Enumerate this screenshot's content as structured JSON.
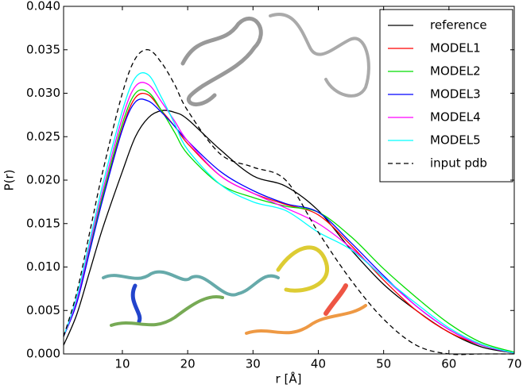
{
  "chart_data": {
    "type": "line",
    "x_label": "r [Å]",
    "y_label": "P(r)",
    "x": [
      1,
      3,
      5,
      7,
      10,
      12,
      14,
      16,
      18,
      20,
      25,
      30,
      35,
      40,
      45,
      50,
      55,
      60,
      65,
      70
    ],
    "series": [
      {
        "name": "reference",
        "color": "#000000",
        "dash": false,
        "values": [
          0.001,
          0.0045,
          0.0095,
          0.0145,
          0.021,
          0.025,
          0.0272,
          0.028,
          0.0278,
          0.027,
          0.0235,
          0.0205,
          0.0193,
          0.0165,
          0.012,
          0.008,
          0.005,
          0.0025,
          0.0008,
          0.0001
        ]
      },
      {
        "name": "MODEL1",
        "color": "#ff0000",
        "dash": false,
        "values": [
          0.002,
          0.006,
          0.012,
          0.018,
          0.026,
          0.0295,
          0.0298,
          0.028,
          0.0262,
          0.0242,
          0.0205,
          0.0185,
          0.0172,
          0.016,
          0.0125,
          0.0085,
          0.005,
          0.0025,
          0.001,
          0.0001
        ]
      },
      {
        "name": "MODEL2",
        "color": "#00dd00",
        "dash": false,
        "values": [
          0.002,
          0.006,
          0.0122,
          0.0183,
          0.0265,
          0.03,
          0.0301,
          0.028,
          0.0255,
          0.023,
          0.0195,
          0.018,
          0.017,
          0.0163,
          0.0135,
          0.0098,
          0.0065,
          0.0035,
          0.0013,
          0.0002
        ]
      },
      {
        "name": "MODEL3",
        "color": "#0000ff",
        "dash": false,
        "values": [
          0.002,
          0.0058,
          0.0118,
          0.0178,
          0.0258,
          0.029,
          0.0291,
          0.0278,
          0.0262,
          0.0245,
          0.021,
          0.0188,
          0.0173,
          0.0163,
          0.0128,
          0.009,
          0.0055,
          0.0028,
          0.001,
          0.0001
        ]
      },
      {
        "name": "MODEL4",
        "color": "#ff00ff",
        "dash": false,
        "values": [
          0.002,
          0.0062,
          0.0125,
          0.0188,
          0.0272,
          0.0308,
          0.031,
          0.029,
          0.0268,
          0.0245,
          0.0205,
          0.0185,
          0.0168,
          0.015,
          0.0122,
          0.0088,
          0.0055,
          0.0028,
          0.001,
          0.0001
        ]
      },
      {
        "name": "MODEL5",
        "color": "#00ffff",
        "dash": false,
        "values": [
          0.002,
          0.0065,
          0.013,
          0.0195,
          0.028,
          0.0318,
          0.0321,
          0.0295,
          0.0265,
          0.0235,
          0.0195,
          0.0175,
          0.0165,
          0.014,
          0.012,
          0.0088,
          0.0058,
          0.003,
          0.0011,
          0.0001
        ]
      },
      {
        "name": "input pdb",
        "color": "#000000",
        "dash": true,
        "values": [
          0.002,
          0.007,
          0.014,
          0.021,
          0.03,
          0.034,
          0.035,
          0.0335,
          0.031,
          0.028,
          0.023,
          0.0215,
          0.02,
          0.014,
          0.0085,
          0.004,
          0.001,
          0.0,
          0.0,
          0.0
        ]
      }
    ],
    "xlim": [
      1,
      70
    ],
    "xticks": [
      10,
      20,
      30,
      40,
      50,
      60,
      70
    ],
    "ylim": [
      0,
      0.04
    ],
    "yticks": [
      {
        "value": 0,
        "label": "0.000"
      },
      {
        "value": 0.005,
        "label": "0.005"
      },
      {
        "value": 0.01,
        "label": "0.010"
      },
      {
        "value": 0.015,
        "label": "0.015"
      },
      {
        "value": 0.02,
        "label": "0.020"
      },
      {
        "value": 0.025,
        "label": "0.025"
      },
      {
        "value": 0.03,
        "label": "0.030"
      },
      {
        "value": 0.035,
        "label": "0.035"
      },
      {
        "value": 0.04,
        "label": "0.040"
      }
    ],
    "legend": "upper right"
  }
}
